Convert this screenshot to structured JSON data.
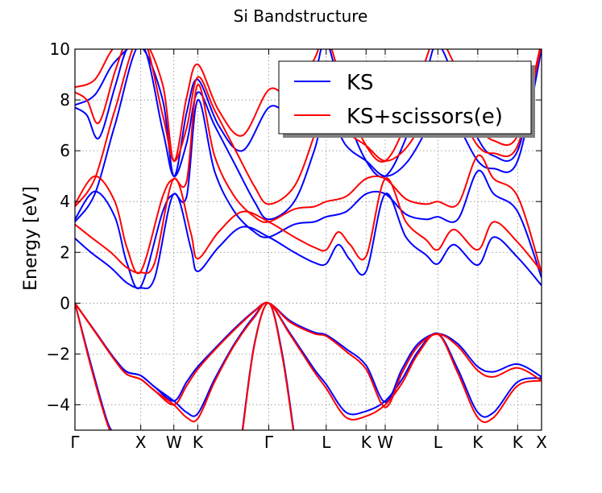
{
  "chart_data": {
    "type": "line",
    "title": "Si Bandstructure",
    "ylabel": "Energy [eV]",
    "ylim": [
      -5,
      10
    ],
    "yticks": [
      -4,
      -2,
      0,
      2,
      4,
      6,
      8,
      10
    ],
    "ytick_labels": [
      "−4",
      "−2",
      "0",
      "2",
      "4",
      "6",
      "8",
      "10"
    ],
    "xlim": [
      0,
      11.7
    ],
    "kpoint_labels": [
      {
        "label": "Γ",
        "x": 0.0
      },
      {
        "label": "X",
        "x": 1.65
      },
      {
        "label": "W",
        "x": 2.48
      },
      {
        "label": "K",
        "x": 3.08
      },
      {
        "label": "Γ",
        "x": 4.86
      },
      {
        "label": "L",
        "x": 6.3
      },
      {
        "label": "K",
        "x": 7.3
      },
      {
        "label": "W",
        "x": 7.78
      },
      {
        "label": "L",
        "x": 9.1
      },
      {
        "label": "K",
        "x": 10.1
      },
      {
        "label": "K",
        "x": 11.1
      },
      {
        "label": "X",
        "x": 11.7
      }
    ],
    "grid": true,
    "legend_position": "top-right",
    "colors": {
      "KS": "#0000ff",
      "KS+scissors(e)": "#ff0000"
    },
    "series": [
      {
        "name": "KS",
        "color": "#0000ff",
        "bands": [
          {
            "x": [
              0,
              0.5,
              1.0,
              1.3,
              1.65,
              2.0,
              2.48,
              2.8,
              3.08,
              3.5,
              4.0,
              4.5,
              4.86,
              5.4,
              6.0,
              6.3,
              6.8,
              7.3,
              7.78,
              8.2,
              8.6,
              9.1,
              9.6,
              10.1,
              10.5,
              11.1,
              11.7
            ],
            "y": [
              0,
              -1.1,
              -2.2,
              -2.7,
              -2.85,
              -3.3,
              -3.85,
              -3.1,
              -2.5,
              -1.8,
              -1.0,
              -0.3,
              0,
              -0.7,
              -1.15,
              -1.25,
              -1.8,
              -2.45,
              -3.9,
              -2.6,
              -1.6,
              -1.2,
              -1.6,
              -2.5,
              -2.7,
              -2.4,
              -2.9
            ]
          },
          {
            "x": [
              0,
              0.5,
              1.0,
              1.3,
              1.65,
              2.0,
              2.48,
              2.8,
              3.08,
              3.5,
              4.0,
              4.5,
              4.86,
              5.4,
              6.0,
              6.3,
              6.8,
              7.3,
              7.78,
              8.2,
              8.6,
              9.1,
              9.6,
              10.1,
              10.5,
              11.1,
              11.7
            ],
            "y": [
              0,
              -1.1,
              -2.2,
              -2.7,
              -2.85,
              -3.3,
              -3.85,
              -4.3,
              -4.35,
              -3.0,
              -1.6,
              -0.5,
              0,
              -1.2,
              -2.6,
              -3.2,
              -4.3,
              -4.25,
              -3.85,
              -3.0,
              -1.9,
              -1.2,
              -2.6,
              -4.3,
              -4.3,
              -3.1,
              -2.95
            ]
          },
          {
            "x": [
              0,
              0.4,
              0.8,
              1.0,
              1.2
            ],
            "y": [
              0,
              -2.4,
              -4.6,
              -5.2,
              -5.8
            ]
          },
          {
            "x": [
              4.2,
              4.5,
              4.86,
              5.2,
              5.5
            ],
            "y": [
              -5.0,
              -1.6,
              0,
              -2.0,
              -5.2
            ]
          },
          {
            "x": [
              0,
              0.4,
              0.9,
              1.3,
              1.65,
              2.0,
              2.48,
              2.9,
              3.08,
              3.6,
              4.2,
              4.86,
              5.5,
              6.0,
              6.3,
              6.6,
              6.9,
              7.3,
              7.78,
              8.3,
              8.8,
              9.1,
              9.5,
              10.1,
              10.5,
              11.1,
              11.7
            ],
            "y": [
              2.55,
              2.0,
              1.4,
              0.8,
              0.6,
              1.0,
              4.3,
              2.2,
              1.25,
              2.2,
              3.0,
              2.6,
              2.0,
              1.6,
              1.55,
              2.3,
              1.7,
              1.25,
              4.3,
              2.6,
              1.9,
              1.55,
              2.3,
              1.5,
              2.6,
              1.8,
              0.7
            ]
          },
          {
            "x": [
              0,
              0.5,
              1.0,
              1.3,
              1.65,
              2.2,
              2.48,
              2.8,
              3.08,
              3.5,
              4.0,
              4.5,
              4.86,
              5.5,
              6.0,
              6.3,
              6.8,
              7.3,
              7.78,
              8.3,
              8.8,
              9.1,
              9.6,
              10.1,
              10.5,
              11.1,
              11.7
            ],
            "y": [
              3.3,
              4.4,
              3.4,
              1.6,
              0.65,
              3.6,
              4.3,
              4.2,
              8.0,
              5.2,
              3.6,
              2.8,
              2.6,
              3.1,
              3.2,
              3.4,
              3.6,
              4.3,
              4.3,
              3.5,
              3.3,
              3.4,
              3.3,
              5.2,
              4.3,
              3.6,
              1.0
            ]
          },
          {
            "x": [
              0,
              0.5,
              1.0,
              1.65,
              2.2,
              2.48,
              2.8,
              3.08,
              3.5,
              4.0,
              4.5,
              4.86,
              5.5,
              6.0,
              6.3,
              6.8,
              7.3,
              7.78,
              8.3,
              8.8,
              9.1,
              9.6,
              10.1,
              10.5,
              11.1,
              11.7
            ],
            "y": [
              3.2,
              4.3,
              7.0,
              10.2,
              6.8,
              5.0,
              6.3,
              8.3,
              7.0,
              5.5,
              4.0,
              3.3,
              4.0,
              6.0,
              7.5,
              6.2,
              5.6,
              5.0,
              5.5,
              6.8,
              8.0,
              7.0,
              5.6,
              5.3,
              5.6,
              10.0
            ]
          },
          {
            "x": [
              0,
              0.3,
              0.6,
              1.0,
              1.3,
              1.65
            ],
            "y": [
              7.7,
              7.4,
              6.5,
              8.5,
              10.0,
              10.3
            ]
          },
          {
            "x": [
              0,
              0.5,
              1.0,
              1.65,
              2.2,
              2.48,
              2.8,
              3.08,
              3.6,
              4.2,
              4.86,
              5.4,
              6.0,
              6.3,
              6.8,
              7.3,
              7.78,
              8.3,
              8.8,
              9.1,
              9.6,
              10.1,
              10.5,
              11.1,
              11.7
            ],
            "y": [
              7.8,
              8.2,
              9.5,
              10.1,
              8.0,
              5.0,
              7.5,
              8.8,
              7.0,
              6.0,
              7.7,
              7.6,
              9.0,
              10.3,
              7.5,
              5.6,
              5.0,
              6.5,
              9.0,
              10.2,
              8.5,
              6.5,
              5.8,
              6.0,
              10.1
            ]
          }
        ]
      },
      {
        "name": "KS+scissors(e)",
        "color": "#ff0000",
        "bands": [
          {
            "x": [
              0,
              0.5,
              1.0,
              1.3,
              1.65,
              2.0,
              2.48,
              2.8,
              3.08,
              3.5,
              4.0,
              4.5,
              4.86,
              5.4,
              6.0,
              6.3,
              6.8,
              7.3,
              7.78,
              8.2,
              8.6,
              9.1,
              9.6,
              10.1,
              10.5,
              11.1,
              11.7
            ],
            "y": [
              0,
              -1.12,
              -2.25,
              -2.8,
              -3.0,
              -3.45,
              -4.0,
              -3.25,
              -2.6,
              -1.85,
              -1.05,
              -0.32,
              0,
              -0.75,
              -1.2,
              -1.3,
              -1.9,
              -2.6,
              -4.1,
              -2.75,
              -1.7,
              -1.22,
              -1.7,
              -2.65,
              -2.9,
              -2.55,
              -3.05
            ]
          },
          {
            "x": [
              0,
              0.5,
              1.0,
              1.3,
              1.65,
              2.0,
              2.48,
              2.8,
              3.08,
              3.5,
              4.0,
              4.5,
              4.86,
              5.4,
              6.0,
              6.3,
              6.8,
              7.3,
              7.78,
              8.2,
              8.6,
              9.1,
              9.6,
              10.1,
              10.5,
              11.1,
              11.7
            ],
            "y": [
              0,
              -1.12,
              -2.25,
              -2.8,
              -3.0,
              -3.45,
              -4.0,
              -4.5,
              -4.55,
              -3.1,
              -1.65,
              -0.55,
              0,
              -1.25,
              -2.7,
              -3.35,
              -4.5,
              -4.45,
              -4.0,
              -3.15,
              -2.0,
              -1.22,
              -2.75,
              -4.5,
              -4.5,
              -3.25,
              -3.05
            ]
          },
          {
            "x": [
              0,
              0.4,
              0.8,
              1.0,
              1.2
            ],
            "y": [
              0,
              -2.5,
              -4.7,
              -5.3,
              -5.9
            ]
          },
          {
            "x": [
              4.2,
              4.5,
              4.86,
              5.2,
              5.5
            ],
            "y": [
              -5.1,
              -1.65,
              0,
              -2.1,
              -5.3
            ]
          },
          {
            "x": [
              0,
              0.4,
              0.9,
              1.3,
              1.65,
              2.0,
              2.48,
              2.9,
              3.08,
              3.6,
              4.2,
              4.86,
              5.5,
              6.0,
              6.3,
              6.6,
              6.9,
              7.3,
              7.78,
              8.3,
              8.8,
              9.1,
              9.5,
              10.1,
              10.5,
              11.1,
              11.7
            ],
            "y": [
              3.1,
              2.6,
              2.0,
              1.4,
              1.2,
              1.6,
              4.9,
              2.8,
              1.75,
              2.8,
              3.6,
              3.2,
              2.6,
              2.2,
              2.1,
              2.8,
              2.3,
              1.85,
              4.9,
              3.2,
              2.5,
              2.1,
              2.9,
              2.1,
              3.2,
              2.4,
              1.25
            ]
          },
          {
            "x": [
              0,
              0.5,
              1.0,
              1.3,
              1.65,
              2.2,
              2.48,
              2.8,
              3.08,
              3.5,
              4.0,
              4.5,
              4.86,
              5.5,
              6.0,
              6.3,
              6.8,
              7.3,
              7.78,
              8.3,
              8.8,
              9.1,
              9.6,
              10.1,
              10.5,
              11.1,
              11.7
            ],
            "y": [
              3.9,
              5.0,
              4.0,
              2.2,
              1.25,
              4.2,
              4.9,
              4.8,
              8.6,
              5.8,
              4.2,
              3.4,
              3.2,
              3.7,
              3.8,
              4.0,
              4.2,
              4.9,
              4.9,
              4.1,
              3.9,
              4.0,
              3.9,
              5.8,
              4.9,
              4.2,
              1.2
            ]
          },
          {
            "x": [
              0,
              0.5,
              1.0,
              1.65,
              2.2,
              2.48,
              2.8,
              3.08,
              3.5,
              4.0,
              4.5,
              4.86,
              5.5,
              6.0,
              6.3,
              6.8,
              7.3,
              7.78,
              8.3,
              8.8,
              9.1,
              9.6,
              10.1,
              10.5,
              11.1,
              11.7
            ],
            "y": [
              3.8,
              4.9,
              7.6,
              10.5,
              7.4,
              5.6,
              6.9,
              8.9,
              7.6,
              6.1,
              4.6,
              3.9,
              4.6,
              6.6,
              8.1,
              6.8,
              6.2,
              5.6,
              6.1,
              7.4,
              8.6,
              7.6,
              6.2,
              5.9,
              6.2,
              10.2
            ]
          },
          {
            "x": [
              0,
              0.3,
              0.6,
              1.0,
              1.3,
              1.65
            ],
            "y": [
              8.3,
              8.0,
              7.1,
              9.1,
              10.3,
              10.5
            ]
          },
          {
            "x": [
              0,
              0.5,
              1.0,
              1.65,
              2.2,
              2.48,
              2.8,
              3.08,
              3.6,
              4.2,
              4.86,
              5.4,
              6.0,
              6.3,
              6.8,
              7.3,
              7.78,
              8.3,
              8.8,
              9.1,
              9.6,
              10.1,
              10.5,
              11.1,
              11.7
            ],
            "y": [
              8.5,
              8.8,
              10.1,
              10.5,
              8.6,
              5.6,
              8.1,
              9.4,
              7.6,
              6.6,
              8.4,
              8.2,
              9.6,
              10.5,
              8.1,
              6.2,
              5.6,
              7.1,
              9.6,
              10.5,
              9.1,
              7.1,
              6.4,
              6.6,
              10.3
            ]
          }
        ]
      }
    ]
  }
}
